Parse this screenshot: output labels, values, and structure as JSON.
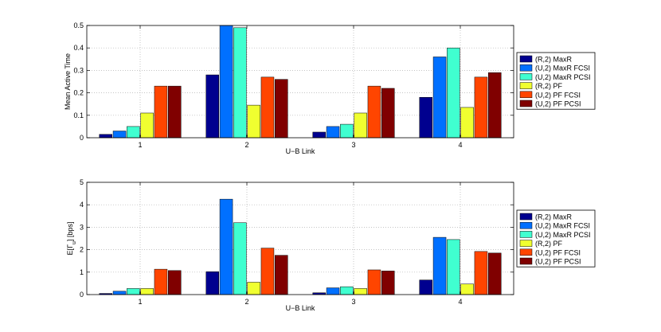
{
  "chart_data": [
    {
      "type": "bar",
      "title": "",
      "xlabel": "U−B Link",
      "ylabel": "Mean Active Time",
      "categories": [
        "1",
        "2",
        "3",
        "4"
      ],
      "ylim": [
        0,
        0.5
      ],
      "yticks": [
        "0",
        "0.1",
        "0.2",
        "0.3",
        "0.4",
        "0.5"
      ],
      "ytick_values": [
        0,
        0.1,
        0.2,
        0.3,
        0.4,
        0.5
      ],
      "grid": true,
      "legend_position": "right",
      "series": [
        {
          "name": "(R,2) MaxR",
          "color": "#00008f",
          "values": [
            0.015,
            0.28,
            0.025,
            0.18
          ]
        },
        {
          "name": "(U,2) MaxR FCSI",
          "color": "#0070ff",
          "values": [
            0.03,
            0.5,
            0.05,
            0.36
          ]
        },
        {
          "name": "(U,2) MaxR PCSI",
          "color": "#40ffd0",
          "values": [
            0.05,
            0.49,
            0.06,
            0.4
          ]
        },
        {
          "name": "(R,2) PF",
          "color": "#f0ff30",
          "values": [
            0.11,
            0.145,
            0.11,
            0.135
          ]
        },
        {
          "name": "(U,2) PF FCSI",
          "color": "#ff4500",
          "values": [
            0.23,
            0.27,
            0.23,
            0.27
          ]
        },
        {
          "name": "(U,2) PF PCSI",
          "color": "#800000",
          "values": [
            0.23,
            0.26,
            0.22,
            0.29
          ]
        }
      ]
    },
    {
      "type": "bar",
      "title": "",
      "xlabel": "U−B Link",
      "ylabel": "E[Γu] [bps]",
      "ylabel_main": "E[Γ",
      "ylabel_sub": "u",
      "ylabel_tail": "] [bps]",
      "categories": [
        "1",
        "2",
        "3",
        "4"
      ],
      "ylim": [
        0,
        5
      ],
      "yticks": [
        "0",
        "1",
        "2",
        "3",
        "4",
        "5"
      ],
      "ytick_values": [
        0,
        1,
        2,
        3,
        4,
        5
      ],
      "grid": true,
      "legend_position": "right",
      "series": [
        {
          "name": "(R,2) MaxR",
          "color": "#00008f",
          "values": [
            0.05,
            1.02,
            0.08,
            0.65
          ]
        },
        {
          "name": "(U,2) MaxR FCSI",
          "color": "#0070ff",
          "values": [
            0.15,
            4.25,
            0.3,
            2.55
          ]
        },
        {
          "name": "(U,2) MaxR PCSI",
          "color": "#40ffd0",
          "values": [
            0.27,
            3.2,
            0.35,
            2.45
          ]
        },
        {
          "name": "(R,2) PF",
          "color": "#f0ff30",
          "values": [
            0.27,
            0.55,
            0.27,
            0.47
          ]
        },
        {
          "name": "(U,2) PF FCSI",
          "color": "#ff4500",
          "values": [
            1.13,
            2.07,
            1.1,
            1.92
          ]
        },
        {
          "name": "(U,2) PF PCSI",
          "color": "#800000",
          "values": [
            1.07,
            1.75,
            1.05,
            1.85
          ]
        }
      ]
    }
  ]
}
